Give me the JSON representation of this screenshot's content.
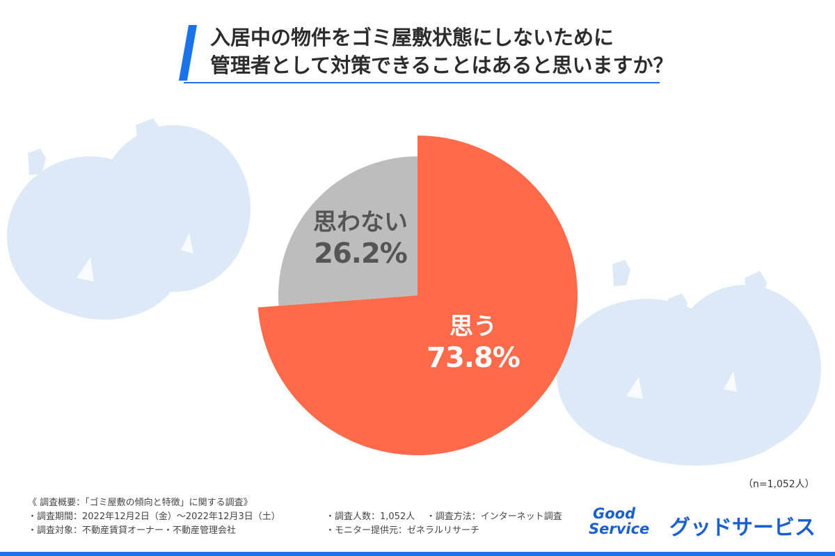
{
  "header": {
    "title_line1": "入居中の物件をゴミ屋敷状態にしないために",
    "title_line2": "管理者として対策できることはあると思いますか？"
  },
  "chart_data": {
    "type": "pie",
    "title": "入居中の物件をゴミ屋敷状態にしないために管理者として対策できることはあると思いますか？",
    "slices": [
      {
        "label": "思う",
        "value": 73.8,
        "value_label": "73.8%",
        "color": "#ff6a4a"
      },
      {
        "label": "思わない",
        "value": 26.2,
        "value_label": "26.2%",
        "color": "#bdbdbd"
      }
    ]
  },
  "sample": {
    "n_label": "（n=1,052人）"
  },
  "notes": {
    "overview": "《 調査概要：「ゴミ屋敷の傾向と特徴」に関する調査》",
    "period": "・調査期間：2022年12月2日（金）〜2022年12月3日（土）",
    "count": "・調査人数：1,052人",
    "method": "・調査方法：インターネット調査",
    "target": "・調査対象：不動産賃貸オーナー・不動産管理会社",
    "provider": "・モニター提供元：ゼネラルリサーチ"
  },
  "logo": {
    "mark_line1": "Good",
    "mark_line2": "Service",
    "text": "グッドサービス"
  },
  "colors": {
    "accent": "#1a73e8",
    "yes": "#ff6a4a",
    "no": "#bdbdbd",
    "deco": "#dbe9f7"
  }
}
